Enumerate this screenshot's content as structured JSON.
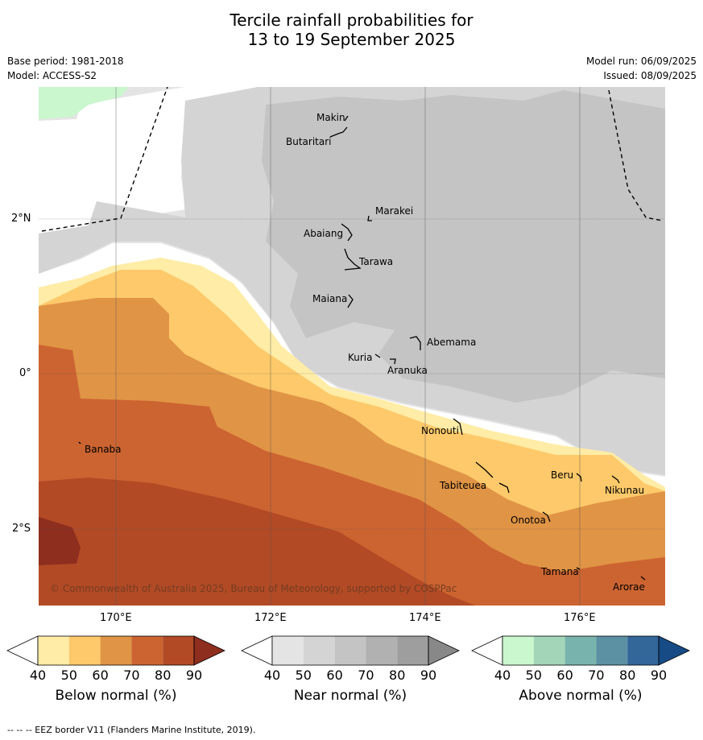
{
  "title_line1": "Tercile rainfall probabilities for",
  "title_line2": "13 to 19 September 2025",
  "base_period": "Base period: 1981-2018",
  "model": "Model: ACCESS-S2",
  "model_run": "Model run: 06/09/2025",
  "issued": "Issued: 08/09/2025",
  "lat_labels": [
    "2°N",
    "0°",
    "2°S"
  ],
  "lon_labels": [
    "170°E",
    "172°E",
    "174°E",
    "176°E"
  ],
  "places": [
    "Makin",
    "Butaritari",
    "Marakei",
    "Abaiang",
    "Tarawa",
    "Maiana",
    "Abemama",
    "Kuria",
    "Aranuka",
    "Banaba",
    "Nonouti",
    "Tabiteuea",
    "Beru",
    "Nikunau",
    "Onotoa",
    "Tamana",
    "Arorae"
  ],
  "copyright": "© Commonwealth of Australia 2025, Bureau of Meteorology, supported by COSPPac",
  "colorbars": [
    {
      "label": "Below normal (%)",
      "ticks": [
        "40",
        "50",
        "60",
        "70",
        "80",
        "90"
      ],
      "colors": [
        "#ffffff",
        "#ffeca6",
        "#fdc96a",
        "#e09445",
        "#cc6431",
        "#b24a26",
        "#8e2e1e"
      ]
    },
    {
      "label": "Near normal (%)",
      "ticks": [
        "40",
        "50",
        "60",
        "70",
        "80",
        "90"
      ],
      "colors": [
        "#ffffff",
        "#e4e4e4",
        "#d4d4d4",
        "#c4c4c4",
        "#b1b1b1",
        "#9e9e9e",
        "#888888"
      ]
    },
    {
      "label": "Above normal (%)",
      "ticks": [
        "40",
        "50",
        "60",
        "70",
        "80",
        "90"
      ],
      "colors": [
        "#ffffff",
        "#caf7cd",
        "#a3d5b9",
        "#79b3ad",
        "#5b91a2",
        "#336699",
        "#174b86"
      ]
    }
  ],
  "footer": "--  --  -- EEZ border V11 (Flanders Marine Institute, 2019)."
}
